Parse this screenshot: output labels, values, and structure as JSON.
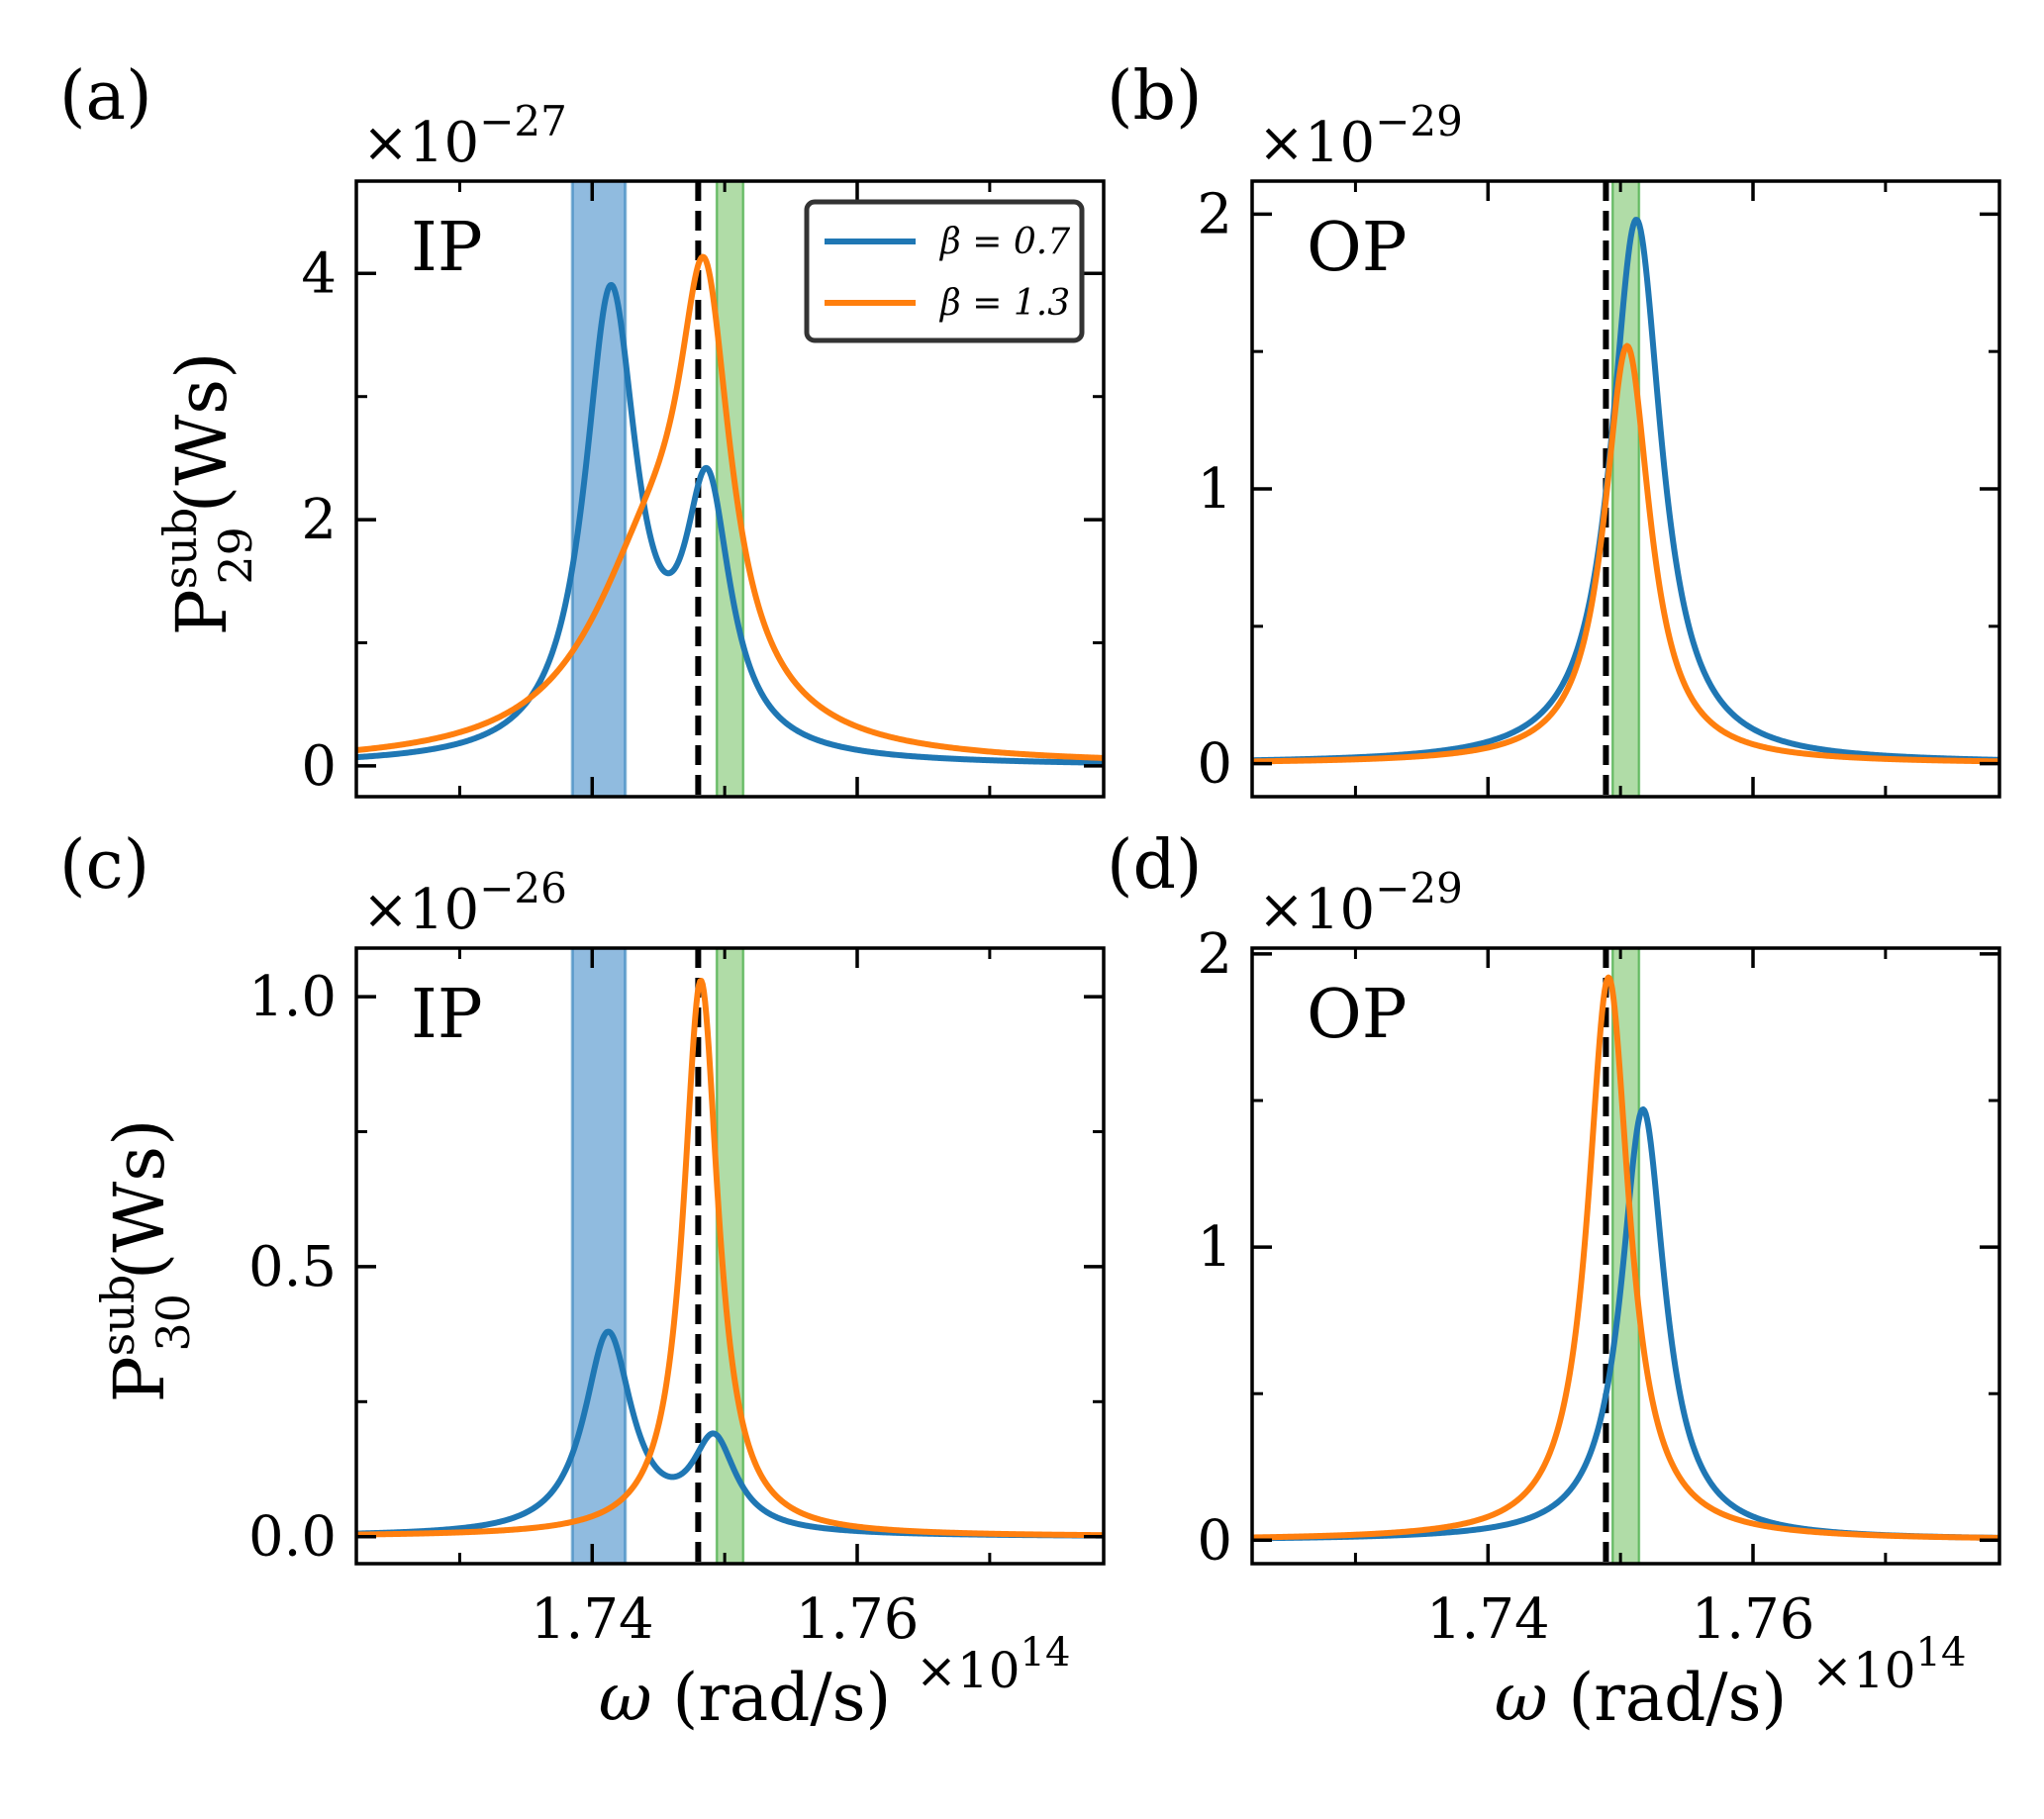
{
  "colors": {
    "series_beta_07": "#1f77b4",
    "series_beta_13": "#ff7f0e",
    "band_blue": "#5b9bd0",
    "band_green": "#6fbf5f",
    "vline": "#000000",
    "axes": "#000000",
    "legend_border": "#333333"
  },
  "legend": {
    "entries": [
      {
        "label": "β = 0.7",
        "series": "beta_07"
      },
      {
        "label": "β = 1.3",
        "series": "beta_13"
      }
    ]
  },
  "shared_x": {
    "xlabel": "ω (rad/s)",
    "xmultiplier": "×10",
    "xexponent": "14",
    "xlim": [
      1.7222,
      1.7786
    ],
    "major_ticks": [
      1.74,
      1.76
    ],
    "minor_ticks": [
      1.73,
      1.75,
      1.77
    ],
    "tick_labels": [
      "1.74",
      "1.76"
    ]
  },
  "annotations": {
    "blue_band": [
      1.7385,
      1.7425
    ],
    "green_band": [
      1.7494,
      1.7514
    ],
    "dashed_vline_ip": 1.748,
    "dashed_vline_op": 1.7489
  },
  "chart_data": [
    {
      "id": "a",
      "type": "line",
      "panel_label": "(a)",
      "mode_label": "IP",
      "ylabel_main": "P",
      "ylabel_sup": "sub",
      "ylabel_sub": "29",
      "ylabel_unit": "(Ws)",
      "exponent_base": "×10",
      "exponent_power": "−27",
      "ylim": [
        -0.25,
        4.75
      ],
      "yticks": [
        0,
        2,
        4
      ],
      "ytick_labels": [
        "0",
        "2",
        "4"
      ],
      "yminor": [
        1,
        3
      ],
      "vline": 1.748,
      "blue_band": true,
      "show_legend": true,
      "series": [
        {
          "name": "β = 0.7",
          "key": "beta_07",
          "peaks": [
            {
              "x0": 1.7414,
              "amp": 3.75,
              "g": 0.0024
            },
            {
              "x0": 1.7487,
              "amp": 2.05,
              "g": 0.0021
            }
          ]
        },
        {
          "name": "β = 1.3",
          "key": "beta_13",
          "peaks": [
            {
              "x0": 1.7485,
              "amp": 3.05,
              "g": 0.0023
            },
            {
              "x0": 1.7445,
              "amp": 1.55,
              "g": 0.006
            }
          ]
        }
      ]
    },
    {
      "id": "b",
      "type": "line",
      "panel_label": "(b)",
      "mode_label": "OP",
      "exponent_base": "×10",
      "exponent_power": "−29",
      "ylim": [
        -0.12,
        2.12
      ],
      "yticks": [
        0,
        1,
        2
      ],
      "ytick_labels": [
        "0",
        "1",
        "2"
      ],
      "yminor": [
        0.5,
        1.5
      ],
      "vline": 1.7489,
      "blue_band": false,
      "show_legend": false,
      "series": [
        {
          "name": "β = 0.7",
          "key": "beta_07",
          "peaks": [
            {
              "x0": 1.7512,
              "amp": 1.98,
              "g": 0.0023
            }
          ]
        },
        {
          "name": "β = 1.3",
          "key": "beta_13",
          "peaks": [
            {
              "x0": 1.7505,
              "amp": 1.52,
              "g": 0.0021
            }
          ]
        }
      ]
    },
    {
      "id": "c",
      "type": "line",
      "panel_label": "(c)",
      "mode_label": "IP",
      "ylabel_main": "P",
      "ylabel_sup": "sub",
      "ylabel_sub": "30",
      "ylabel_unit": "(Ws)",
      "exponent_base": "×10",
      "exponent_power": "−26",
      "ylim": [
        -0.05,
        1.09
      ],
      "yticks": [
        0.0,
        0.5,
        1.0
      ],
      "ytick_labels": [
        "0.0",
        "0.5",
        "1.0"
      ],
      "yminor": [
        0.25,
        0.75
      ],
      "vline": 1.748,
      "blue_band": true,
      "show_legend": false,
      "series": [
        {
          "name": "β = 0.7",
          "key": "beta_07",
          "peaks": [
            {
              "x0": 1.7412,
              "amp": 0.37,
              "g": 0.0022
            },
            {
              "x0": 1.7492,
              "amp": 0.165,
              "g": 0.002
            }
          ]
        },
        {
          "name": "β = 1.3",
          "key": "beta_13",
          "peaks": [
            {
              "x0": 1.7482,
              "amp": 1.03,
              "g": 0.0016
            }
          ]
        }
      ]
    },
    {
      "id": "d",
      "type": "line",
      "panel_label": "(d)",
      "mode_label": "OP",
      "exponent_base": "×10",
      "exponent_power": "−29",
      "ylim": [
        -0.08,
        2.02
      ],
      "yticks": [
        0,
        1,
        2
      ],
      "ytick_labels": [
        "0",
        "1",
        "2"
      ],
      "yminor": [
        0.5,
        1.5
      ],
      "vline": 1.7489,
      "blue_band": false,
      "show_legend": false,
      "series": [
        {
          "name": "β = 0.7",
          "key": "beta_07",
          "peaks": [
            {
              "x0": 1.7517,
              "amp": 1.47,
              "g": 0.002
            }
          ]
        },
        {
          "name": "β = 1.3",
          "key": "beta_13",
          "peaks": [
            {
              "x0": 1.7491,
              "amp": 1.92,
              "g": 0.0019
            }
          ]
        }
      ]
    }
  ]
}
